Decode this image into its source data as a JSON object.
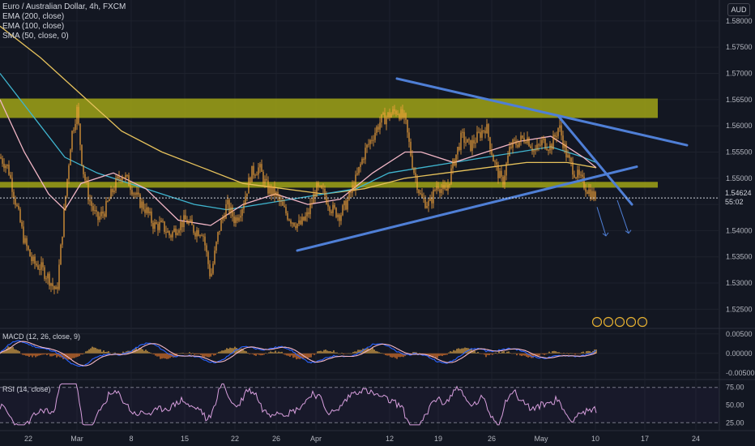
{
  "legend": {
    "title": "Euro / Australian Dollar, 4h, FXCM",
    "ema200": "EMA (200, close)",
    "ema100": "EMA (100, close)",
    "sma50": "SMA (50, close, 0)"
  },
  "currency_badge": "AUD",
  "last_price": "1.54624",
  "countdown": "55:02",
  "macd_label": "MACD (12, 26, close, 9)",
  "rsi_label": "RSI (14, close)",
  "colors": {
    "bg": "#131722",
    "grid": "#1e222d",
    "zone": "#a0a316",
    "trend": "#4f7fd6",
    "candle": "#f5a43b",
    "ema200": "#e6c25c",
    "ema100": "#3fb5cf",
    "sma50": "#f2b6c6",
    "macd": "#2962ff",
    "signal": "#f2b6c6",
    "rsi": "#d9a0df"
  },
  "chart_data": [
    {
      "type": "line",
      "name": "price",
      "x_ticks": [
        "22",
        "Mar",
        "8",
        "15",
        "22",
        "26",
        "Apr",
        "12",
        "19",
        "26",
        "May",
        "10",
        "17",
        "24"
      ],
      "y_ticks": [
        "1.58000",
        "1.57500",
        "1.57000",
        "1.56500",
        "1.56000",
        "1.55500",
        "1.55000",
        "1.54500",
        "1.54000",
        "1.53500",
        "1.53000",
        "1.52500"
      ],
      "ylim": [
        1.5215,
        1.584
      ],
      "last": 1.54624,
      "zones": [
        [
          1.5615,
          1.5652
        ],
        [
          1.5482,
          1.5493
        ]
      ],
      "close_path": [
        [
          0,
          1.554
        ],
        [
          10,
          1.552
        ],
        [
          20,
          1.545
        ],
        [
          30,
          1.538
        ],
        [
          40,
          1.534
        ],
        [
          50,
          1.533
        ],
        [
          60,
          1.531
        ],
        [
          70,
          1.528
        ],
        [
          80,
          1.545
        ],
        [
          88,
          1.558
        ],
        [
          95,
          1.563
        ],
        [
          102,
          1.552
        ],
        [
          110,
          1.546
        ],
        [
          120,
          1.542
        ],
        [
          130,
          1.544
        ],
        [
          140,
          1.548
        ],
        [
          150,
          1.551
        ],
        [
          160,
          1.549
        ],
        [
          170,
          1.546
        ],
        [
          180,
          1.544
        ],
        [
          190,
          1.541
        ],
        [
          200,
          1.541
        ],
        [
          210,
          1.539
        ],
        [
          220,
          1.541
        ],
        [
          230,
          1.542
        ],
        [
          240,
          1.54
        ],
        [
          250,
          1.54
        ],
        [
          260,
          1.531
        ],
        [
          270,
          1.54
        ],
        [
          280,
          1.545
        ],
        [
          290,
          1.542
        ],
        [
          300,
          1.545
        ],
        [
          310,
          1.551
        ],
        [
          320,
          1.552
        ],
        [
          330,
          1.548
        ],
        [
          340,
          1.547
        ],
        [
          350,
          1.544
        ],
        [
          360,
          1.542
        ],
        [
          370,
          1.541
        ],
        [
          380,
          1.543
        ],
        [
          390,
          1.548
        ],
        [
          400,
          1.547
        ],
        [
          410,
          1.544
        ],
        [
          420,
          1.543
        ],
        [
          430,
          1.546
        ],
        [
          440,
          1.55
        ],
        [
          450,
          1.555
        ],
        [
          460,
          1.558
        ],
        [
          470,
          1.561
        ],
        [
          480,
          1.562
        ],
        [
          490,
          1.563
        ],
        [
          500,
          1.561
        ],
        [
          510,
          1.552
        ],
        [
          520,
          1.546
        ],
        [
          530,
          1.545
        ],
        [
          540,
          1.549
        ],
        [
          550,
          1.547
        ],
        [
          560,
          1.553
        ],
        [
          570,
          1.558
        ],
        [
          580,
          1.556
        ],
        [
          590,
          1.558
        ],
        [
          600,
          1.56
        ],
        [
          610,
          1.553
        ],
        [
          620,
          1.549
        ],
        [
          630,
          1.556
        ],
        [
          640,
          1.557
        ],
        [
          650,
          1.558
        ],
        [
          660,
          1.555
        ],
        [
          670,
          1.557
        ],
        [
          680,
          1.556
        ],
        [
          690,
          1.56
        ],
        [
          700,
          1.554
        ],
        [
          710,
          1.551
        ],
        [
          720,
          1.549
        ],
        [
          730,
          1.547
        ],
        [
          736,
          1.5462
        ]
      ],
      "ema200": [
        [
          0,
          1.579
        ],
        [
          50,
          1.573
        ],
        [
          100,
          1.566
        ],
        [
          150,
          1.559
        ],
        [
          200,
          1.555
        ],
        [
          250,
          1.552
        ],
        [
          300,
          1.549
        ],
        [
          350,
          1.548
        ],
        [
          400,
          1.547
        ],
        [
          450,
          1.548
        ],
        [
          500,
          1.55
        ],
        [
          550,
          1.551
        ],
        [
          600,
          1.552
        ],
        [
          650,
          1.553
        ],
        [
          700,
          1.553
        ],
        [
          736,
          1.552
        ]
      ],
      "ema100": [
        [
          0,
          1.57
        ],
        [
          40,
          1.562
        ],
        [
          80,
          1.554
        ],
        [
          120,
          1.551
        ],
        [
          160,
          1.549
        ],
        [
          200,
          1.547
        ],
        [
          240,
          1.545
        ],
        [
          280,
          1.544
        ],
        [
          320,
          1.545
        ],
        [
          360,
          1.546
        ],
        [
          400,
          1.547
        ],
        [
          440,
          1.548
        ],
        [
          480,
          1.551
        ],
        [
          520,
          1.552
        ],
        [
          560,
          1.553
        ],
        [
          600,
          1.554
        ],
        [
          640,
          1.555
        ],
        [
          680,
          1.556
        ],
        [
          720,
          1.554
        ],
        [
          736,
          1.553
        ]
      ],
      "sma50": [
        [
          0,
          1.565
        ],
        [
          30,
          1.555
        ],
        [
          60,
          1.547
        ],
        [
          80,
          1.544
        ],
        [
          100,
          1.549
        ],
        [
          140,
          1.551
        ],
        [
          180,
          1.548
        ],
        [
          220,
          1.542
        ],
        [
          260,
          1.541
        ],
        [
          300,
          1.545
        ],
        [
          340,
          1.547
        ],
        [
          380,
          1.545
        ],
        [
          420,
          1.546
        ],
        [
          460,
          1.551
        ],
        [
          500,
          1.555
        ],
        [
          520,
          1.555
        ],
        [
          560,
          1.553
        ],
        [
          600,
          1.555
        ],
        [
          640,
          1.557
        ],
        [
          680,
          1.558
        ],
        [
          720,
          1.554
        ],
        [
          736,
          1.552
        ]
      ],
      "trendlines": [
        [
          [
            490,
            1.569
          ],
          [
            848,
            1.5563
          ]
        ],
        [
          [
            690,
            1.5617
          ],
          [
            780,
            1.545
          ]
        ],
        [
          [
            367,
            1.5362
          ],
          [
            786,
            1.5522
          ]
        ]
      ],
      "arrows": [
        [
          [
            737,
            1.5445
          ],
          [
            748,
            1.539
          ]
        ],
        [
          [
            762,
            1.5458
          ],
          [
            776,
            1.5395
          ]
        ]
      ]
    },
    {
      "type": "bar",
      "name": "MACD",
      "y_ticks": [
        "0.00500",
        "0.00000",
        "-0.00500"
      ],
      "ylim": [
        -0.0065,
        0.0062
      ]
    },
    {
      "type": "line",
      "name": "RSI",
      "y_ticks": [
        "75.00",
        "50.00",
        "25.00"
      ],
      "ylim": [
        15,
        85
      ]
    }
  ]
}
